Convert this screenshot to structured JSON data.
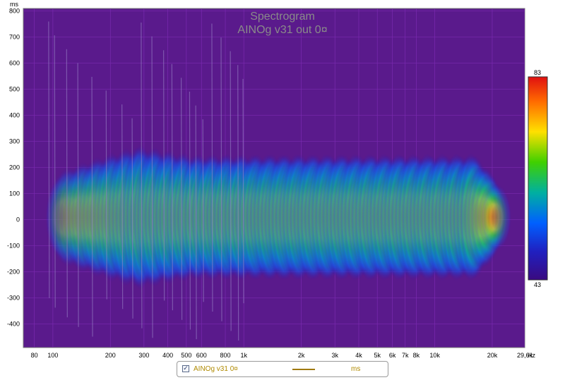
{
  "chart_data": {
    "type": "heatmap",
    "title": "Spectrogram",
    "subtitle": "AINOg v31 out 0¤",
    "ylabel": "ms",
    "xunit": "Hz",
    "xscale": "log",
    "xlim": [
      70,
      29600
    ],
    "ylim": [
      -490,
      810
    ],
    "x_ticks": [
      {
        "v": 80,
        "label": "80"
      },
      {
        "v": 100,
        "label": "100"
      },
      {
        "v": 200,
        "label": "200"
      },
      {
        "v": 300,
        "label": "300"
      },
      {
        "v": 400,
        "label": "400"
      },
      {
        "v": 500,
        "label": "500"
      },
      {
        "v": 600,
        "label": "600"
      },
      {
        "v": 800,
        "label": "800"
      },
      {
        "v": 1000,
        "label": "1k"
      },
      {
        "v": 2000,
        "label": "2k"
      },
      {
        "v": 3000,
        "label": "3k"
      },
      {
        "v": 4000,
        "label": "4k"
      },
      {
        "v": 5000,
        "label": "5k"
      },
      {
        "v": 6000,
        "label": "6k"
      },
      {
        "v": 7000,
        "label": "7k"
      },
      {
        "v": 8000,
        "label": "8k"
      },
      {
        "v": 10000,
        "label": "10k"
      },
      {
        "v": 20000,
        "label": "20k"
      },
      {
        "v": 29600,
        "label": "29,6k"
      }
    ],
    "y_ticks": [
      800,
      700,
      600,
      500,
      400,
      300,
      200,
      100,
      0,
      -100,
      -200,
      -300,
      -400
    ],
    "colorbar": {
      "min": 43,
      "max": 83,
      "min_label": "43",
      "max_label": "83"
    },
    "energy_region": {
      "f_start": 110,
      "f_end": 21000,
      "t_min": -240,
      "t_max": 250,
      "peak_t": 10
    },
    "grid": true,
    "background_color": "#5a1a8c"
  },
  "legend": {
    "series_name": "AINOg v31 0¤",
    "unit": "ms",
    "checked": true,
    "check_glyph": "✓",
    "line_color": "#a07a10"
  }
}
